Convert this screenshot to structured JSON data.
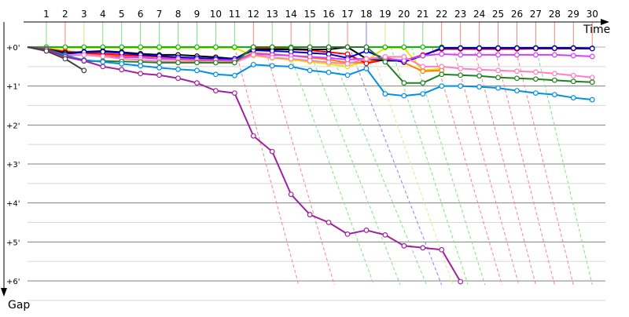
{
  "chart_data": {
    "type": "line",
    "title": "",
    "xlabel": "Time",
    "ylabel": "Gap",
    "x": [
      1,
      2,
      3,
      4,
      5,
      6,
      7,
      8,
      9,
      10,
      11,
      12,
      13,
      14,
      15,
      16,
      17,
      18,
      19,
      20,
      21,
      22,
      23,
      24,
      25,
      26,
      27,
      28,
      29,
      30
    ],
    "x_tick_labels": [
      "1",
      "2",
      "3",
      "4",
      "5",
      "6",
      "7",
      "8",
      "9",
      "10",
      "11",
      "12",
      "13",
      "14",
      "15",
      "16",
      "17",
      "18",
      "19",
      "20",
      "21",
      "22",
      "23",
      "24",
      "25",
      "26",
      "27",
      "28",
      "29",
      "30"
    ],
    "y_tick_labels": [
      "+0'",
      "+1'",
      "+2'",
      "+3'",
      "+4'",
      "+5'",
      "+6'"
    ],
    "y_ticks": [
      0,
      1,
      2,
      3,
      4,
      5,
      6
    ],
    "ylim": [
      -0.5,
      6.1
    ],
    "y_inverted": true,
    "xlim": [
      0,
      30.7
    ],
    "grid": true,
    "series": [
      {
        "color": "#e6e600",
        "values": [
          0.03,
          0.02,
          0.02,
          0.02,
          0.02,
          0.02,
          0.02,
          0.02,
          0.02,
          0.02,
          0.02,
          0.22,
          0.28,
          0.33,
          0.38,
          0.43,
          0.5,
          0.35,
          0.02,
          0.02,
          0.6,
          0.55,
          null,
          null,
          null,
          null,
          null,
          null,
          null,
          null
        ]
      },
      {
        "color": "#00c000",
        "values": [
          0.0,
          0.0,
          0.0,
          0.0,
          0.0,
          0.0,
          0.0,
          0.0,
          0.0,
          0.0,
          0.0,
          0.0,
          0.0,
          0.0,
          0.0,
          0.0,
          0.0,
          0.0,
          0.0,
          0.0,
          0.0,
          0.0,
          null,
          null,
          null,
          null,
          null,
          null,
          null,
          null
        ]
      },
      {
        "color": "#ff8000",
        "values": [
          0.04,
          0.1,
          0.15,
          0.2,
          0.22,
          0.26,
          0.3,
          0.32,
          0.34,
          0.35,
          0.36,
          0.15,
          0.18,
          0.22,
          0.27,
          0.32,
          0.4,
          0.4,
          0.25,
          0.4,
          0.62,
          0.6,
          null,
          null,
          null,
          null,
          null,
          null,
          null,
          null
        ]
      },
      {
        "color": "#ff0000",
        "values": [
          0.05,
          0.12,
          0.15,
          0.17,
          0.2,
          0.22,
          0.25,
          0.27,
          0.3,
          0.3,
          0.33,
          0.03,
          0.04,
          0.06,
          0.08,
          0.13,
          0.18,
          0.42,
          0.32,
          0.35,
          0.2,
          0.05,
          0.05,
          0.05,
          0.05,
          0.05,
          0.04,
          0.04,
          0.04,
          0.04
        ]
      },
      {
        "color": "#000000",
        "values": [
          0.05,
          0.15,
          0.12,
          0.1,
          0.13,
          0.17,
          0.2,
          0.2,
          0.23,
          0.26,
          0.3,
          0.06,
          0.06,
          0.06,
          0.06,
          0.06,
          0.0,
          0.3,
          0.35,
          0.35,
          0.22,
          0.02,
          0.02,
          0.02,
          0.02,
          0.02,
          0.02,
          0.02,
          0.02,
          0.03
        ]
      },
      {
        "color": "#0000d0",
        "values": [
          0.05,
          0.18,
          0.13,
          0.12,
          0.15,
          0.2,
          0.23,
          0.26,
          0.28,
          0.3,
          0.3,
          0.08,
          0.1,
          0.12,
          0.15,
          0.18,
          0.28,
          0.1,
          0.3,
          0.38,
          0.22,
          0.03,
          0.03,
          0.03,
          0.03,
          0.03,
          0.03,
          0.03,
          0.03,
          0.04
        ]
      },
      {
        "color": "#d040ff",
        "values": [
          0.05,
          0.22,
          0.2,
          0.24,
          0.26,
          0.27,
          0.3,
          0.3,
          0.32,
          0.33,
          0.34,
          0.18,
          0.2,
          0.22,
          0.25,
          0.28,
          0.32,
          0.3,
          0.3,
          0.34,
          0.22,
          0.18,
          0.2,
          0.2,
          0.2,
          0.2,
          0.2,
          0.2,
          0.22,
          0.24
        ]
      },
      {
        "color": "#ff80c0",
        "values": [
          0.06,
          0.2,
          0.2,
          0.24,
          0.3,
          0.33,
          0.36,
          0.37,
          0.38,
          0.4,
          0.4,
          0.2,
          0.27,
          0.3,
          0.35,
          0.39,
          0.43,
          0.3,
          0.25,
          0.25,
          0.5,
          0.5,
          0.55,
          0.58,
          0.6,
          0.62,
          0.64,
          0.68,
          0.73,
          0.78
        ]
      },
      {
        "color": "#208020",
        "values": [
          0.05,
          0.2,
          0.36,
          0.36,
          0.37,
          0.38,
          0.4,
          0.4,
          0.4,
          0.4,
          0.4,
          0.0,
          0.0,
          0.02,
          0.0,
          0.0,
          0.0,
          0.0,
          0.38,
          0.92,
          0.92,
          0.7,
          0.72,
          0.74,
          0.78,
          0.8,
          0.82,
          0.85,
          0.88,
          0.9
        ]
      },
      {
        "color": "#0090e0",
        "values": [
          0.06,
          0.22,
          0.33,
          0.38,
          0.43,
          0.48,
          0.53,
          0.57,
          0.6,
          0.7,
          0.73,
          0.45,
          0.48,
          0.5,
          0.6,
          0.65,
          0.72,
          0.55,
          1.2,
          1.25,
          1.2,
          1.0,
          1.0,
          1.02,
          1.05,
          1.12,
          1.18,
          1.22,
          1.3,
          1.35
        ]
      },
      {
        "color": "#a020a0",
        "values": [
          0.06,
          0.25,
          0.35,
          0.5,
          0.58,
          0.68,
          0.72,
          0.8,
          0.92,
          1.12,
          1.18,
          2.28,
          2.68,
          3.78,
          4.3,
          4.5,
          4.8,
          4.7,
          4.82,
          5.1,
          5.15,
          5.2,
          6.02,
          null,
          null,
          null,
          null,
          null,
          null,
          null
        ]
      },
      {
        "color": "#404040",
        "values": [
          0.1,
          0.3,
          0.6,
          null,
          null,
          null,
          null,
          null,
          null,
          null,
          null,
          null,
          null,
          null,
          null,
          null,
          null,
          null,
          null,
          null,
          null,
          null,
          null,
          null,
          null,
          null,
          null,
          null,
          null,
          null
        ]
      }
    ],
    "lapped_lines": [
      {
        "color": "#ff8080",
        "from": [
          11,
          0.0
        ],
        "to": [
          14.4,
          6.1
        ]
      },
      {
        "color": "#ff8080",
        "from": [
          12.6,
          0.0
        ],
        "to": [
          16.3,
          6.1
        ]
      },
      {
        "color": "#80e080",
        "from": [
          13.8,
          0.0
        ],
        "to": [
          18.4,
          6.1
        ]
      },
      {
        "color": "#80e080",
        "from": [
          14.9,
          0.0
        ],
        "to": [
          19.8,
          6.1
        ]
      },
      {
        "color": "#80e080",
        "from": [
          16.0,
          0.0
        ],
        "to": [
          21.2,
          6.1
        ]
      },
      {
        "color": "#8080ff",
        "from": [
          17.1,
          0.0
        ],
        "to": [
          22.0,
          6.1
        ]
      },
      {
        "color": "#e6e680",
        "from": [
          18.2,
          0.0
        ],
        "to": [
          22.6,
          6.1
        ]
      },
      {
        "color": "#80e080",
        "from": [
          19.3,
          0.0
        ],
        "to": [
          23.4,
          6.1
        ]
      },
      {
        "color": "#80e080",
        "from": [
          20.4,
          0.0
        ],
        "to": [
          24.3,
          6.1
        ]
      },
      {
        "color": "#ff8080",
        "from": [
          21.5,
          0.0
        ],
        "to": [
          25.2,
          6.1
        ]
      },
      {
        "color": "#ff8080",
        "from": [
          22.6,
          0.0
        ],
        "to": [
          26.1,
          6.1
        ]
      },
      {
        "color": "#ff8080",
        "from": [
          23.7,
          0.0
        ],
        "to": [
          27.0,
          6.1
        ]
      },
      {
        "color": "#ff8080",
        "from": [
          24.8,
          0.0
        ],
        "to": [
          28.0,
          6.1
        ]
      },
      {
        "color": "#ff8080",
        "from": [
          25.9,
          0.0
        ],
        "to": [
          29.0,
          6.1
        ]
      },
      {
        "color": "#80e080",
        "from": [
          27.0,
          0.0
        ],
        "to": [
          30.0,
          6.1
        ]
      }
    ],
    "vertical_lap_colors": [
      "#80e080",
      "#ff8080",
      "#e6e680",
      "#80e080",
      "#80e080",
      "#80e080",
      "#80e080",
      "#80e080",
      "#80e080",
      "#80e080",
      "#80e080",
      "#ff8080",
      "#80e080",
      "#ff8080",
      "#80e080",
      "#80e080",
      "#ff8080",
      "#8080ff",
      "#e6e680",
      "#80e080",
      "#80e080",
      "#ff8080",
      "#ff8080",
      "#ff8080",
      "#ff8080",
      "#ff8080",
      "#ff8080",
      "#ff8080",
      "#ff8080",
      "#ff8080"
    ]
  }
}
